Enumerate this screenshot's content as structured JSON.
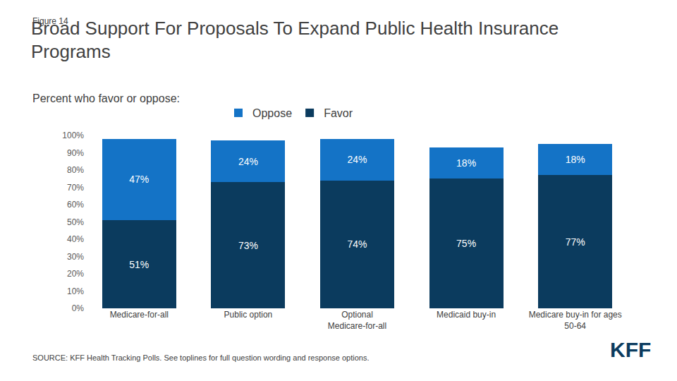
{
  "chart_data": {
    "type": "bar",
    "stacked": true,
    "figure_label": "Figure 14",
    "title": "Broad Support For Proposals To Expand Public Health Insurance Programs",
    "subtitle": "Percent who favor or oppose:",
    "source": "SOURCE: KFF Health Tracking Polls. See toplines for full question wording and response options.",
    "logo": "KFF",
    "categories": [
      "Medicare-for-all",
      "Public option",
      "Optional Medicare-for-all",
      "Medicaid buy-in",
      "Medicare buy-in for ages 50-64"
    ],
    "series": [
      {
        "name": "Favor",
        "color": "#0b3b5e",
        "values": [
          51,
          73,
          74,
          75,
          77
        ],
        "value_labels": [
          "51%",
          "73%",
          "74%",
          "75%",
          "77%"
        ]
      },
      {
        "name": "Oppose",
        "color": "#1473c6",
        "values": [
          47,
          24,
          24,
          18,
          18
        ],
        "value_labels": [
          "47%",
          "24%",
          "24%",
          "18%",
          "18%"
        ]
      }
    ],
    "ylim": [
      0,
      100
    ],
    "yticks": [
      {
        "value": 0,
        "label": "0%"
      },
      {
        "value": 10,
        "label": "10%"
      },
      {
        "value": 20,
        "label": "20%"
      },
      {
        "value": 30,
        "label": "30%"
      },
      {
        "value": 40,
        "label": "40%"
      },
      {
        "value": 50,
        "label": "50%"
      },
      {
        "value": 60,
        "label": "60%"
      },
      {
        "value": 70,
        "label": "70%"
      },
      {
        "value": 80,
        "label": "80%"
      },
      {
        "value": 90,
        "label": "90%"
      },
      {
        "value": 100,
        "label": "100%"
      }
    ],
    "grid": false,
    "data_labels": true,
    "legend": "top"
  }
}
